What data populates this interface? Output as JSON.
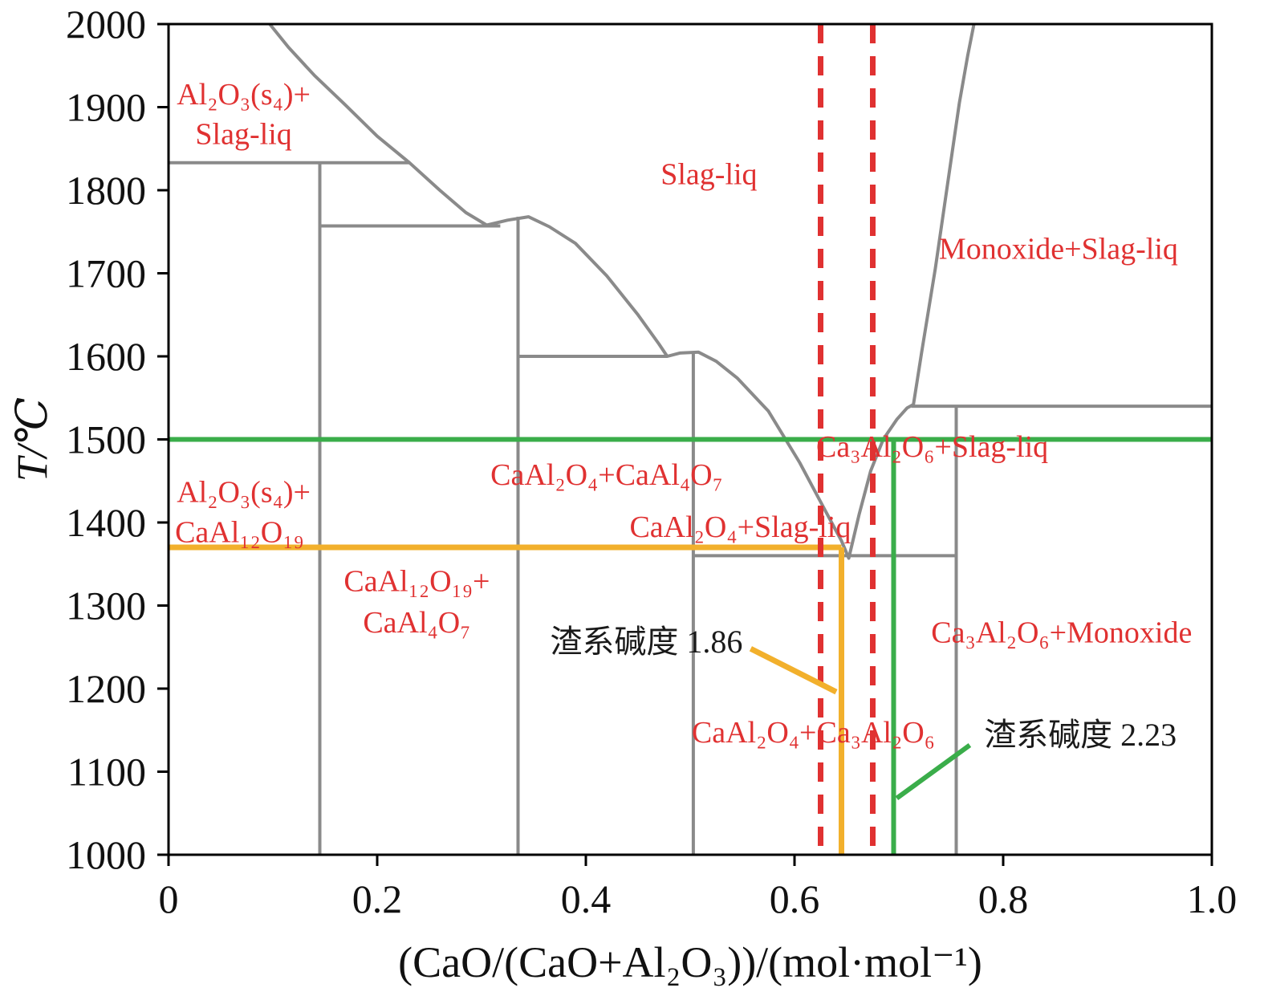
{
  "chart_data": {
    "type": "line",
    "title": "",
    "xlabel": "(CaO/(CaO+Al₂O₃))/(mol·mol⁻¹)",
    "ylabel": "T/℃",
    "xlim": [
      0,
      1.0
    ],
    "ylim": [
      1000,
      2000
    ],
    "grid": false,
    "x_ticks": [
      0,
      0.2,
      0.4,
      0.6,
      0.8,
      1.0
    ],
    "x_tick_labels": [
      "0",
      "0.2",
      "0.4",
      "0.6",
      "0.8",
      "1.0"
    ],
    "y_ticks": [
      1000,
      1100,
      1200,
      1300,
      1400,
      1500,
      1600,
      1700,
      1800,
      1900,
      2000
    ],
    "colors": {
      "boundary": "#8a8a8a",
      "frame": "#000000",
      "red": "#e03131",
      "green": "#3aad4a",
      "orange": "#f2b02c",
      "label_red": "#e03131",
      "label_black": "#1a1a1a"
    },
    "series": [
      {
        "name": "liquidus-curve",
        "color": "boundary",
        "width": 4,
        "points": [
          [
            0.097,
            2000
          ],
          [
            0.115,
            1972
          ],
          [
            0.14,
            1938
          ],
          [
            0.17,
            1902
          ],
          [
            0.2,
            1865
          ],
          [
            0.231,
            1833
          ],
          [
            0.26,
            1800
          ],
          [
            0.285,
            1773
          ],
          [
            0.305,
            1758
          ],
          [
            0.325,
            1764
          ],
          [
            0.345,
            1768
          ],
          [
            0.365,
            1756
          ],
          [
            0.39,
            1736
          ],
          [
            0.42,
            1697
          ],
          [
            0.45,
            1650
          ],
          [
            0.47,
            1615
          ],
          [
            0.478,
            1600
          ],
          [
            0.49,
            1604
          ],
          [
            0.508,
            1605
          ],
          [
            0.525,
            1594
          ],
          [
            0.545,
            1574
          ],
          [
            0.575,
            1534
          ],
          [
            0.605,
            1472
          ],
          [
            0.63,
            1413
          ],
          [
            0.645,
            1378
          ],
          [
            0.652,
            1357
          ],
          [
            0.662,
            1410
          ],
          [
            0.673,
            1462
          ],
          [
            0.685,
            1500
          ],
          [
            0.698,
            1524
          ],
          [
            0.708,
            1538
          ],
          [
            0.714,
            1542
          ],
          [
            0.722,
            1606
          ],
          [
            0.735,
            1706
          ],
          [
            0.747,
            1810
          ],
          [
            0.758,
            1905
          ],
          [
            0.766,
            1962
          ],
          [
            0.772,
            2000
          ]
        ]
      },
      {
        "name": "isotherm-1833",
        "color": "boundary",
        "width": 4,
        "points": [
          [
            0,
            1833
          ],
          [
            0.231,
            1833
          ]
        ]
      },
      {
        "name": "isotherm-1757",
        "color": "boundary",
        "width": 4,
        "points": [
          [
            0.145,
            1757
          ],
          [
            0.318,
            1757
          ]
        ]
      },
      {
        "name": "isotherm-1600",
        "color": "boundary",
        "width": 4,
        "points": [
          [
            0.335,
            1600
          ],
          [
            0.478,
            1600
          ]
        ]
      },
      {
        "name": "isotherm-1360",
        "color": "boundary",
        "width": 4,
        "points": [
          [
            0.503,
            1360
          ],
          [
            0.755,
            1360
          ]
        ]
      },
      {
        "name": "isotherm-1540",
        "color": "boundary",
        "width": 4,
        "points": [
          [
            0.712,
            1540
          ],
          [
            1.0,
            1540
          ]
        ]
      },
      {
        "name": "phase-boundary-x0145",
        "color": "boundary",
        "width": 4,
        "points": [
          [
            0.145,
            1833
          ],
          [
            0.145,
            1000
          ]
        ]
      },
      {
        "name": "phase-boundary-x0335",
        "color": "boundary",
        "width": 4,
        "points": [
          [
            0.335,
            1768
          ],
          [
            0.335,
            1000
          ]
        ]
      },
      {
        "name": "phase-boundary-x0503",
        "color": "boundary",
        "width": 4,
        "points": [
          [
            0.503,
            1605
          ],
          [
            0.503,
            1000
          ]
        ]
      },
      {
        "name": "phase-boundary-x0755",
        "color": "boundary",
        "width": 4,
        "points": [
          [
            0.755,
            1540
          ],
          [
            0.755,
            1000
          ]
        ]
      },
      {
        "name": "basicity-186-horizontal",
        "color": "orange",
        "width": 7,
        "points": [
          [
            0,
            1370
          ],
          [
            0.645,
            1370
          ]
        ]
      },
      {
        "name": "basicity-186-vertical",
        "color": "orange",
        "width": 7,
        "points": [
          [
            0.645,
            1370
          ],
          [
            0.645,
            1000
          ]
        ]
      },
      {
        "name": "basicity-223-horizontal",
        "color": "green",
        "width": 6,
        "points": [
          [
            0,
            1500
          ],
          [
            1.0,
            1500
          ]
        ]
      },
      {
        "name": "basicity-223-vertical",
        "color": "green",
        "width": 6,
        "points": [
          [
            0.695,
            1500
          ],
          [
            0.695,
            1000
          ]
        ]
      },
      {
        "name": "target-range-dashed-left",
        "color": "red",
        "width": 7,
        "dash": "24 16",
        "points": [
          [
            0.625,
            2000
          ],
          [
            0.625,
            1000
          ]
        ]
      },
      {
        "name": "target-range-dashed-right",
        "color": "red",
        "width": 7,
        "dash": "24 16",
        "points": [
          [
            0.675,
            2000
          ],
          [
            0.675,
            1000
          ]
        ]
      },
      {
        "name": "leader-line-186",
        "color": "orange",
        "width": 7,
        "points": [
          [
            0.558,
            1248
          ],
          [
            0.64,
            1196
          ]
        ]
      },
      {
        "name": "leader-line-223",
        "color": "green",
        "width": 6,
        "points": [
          [
            0.698,
            1068
          ],
          [
            0.768,
            1132
          ]
        ]
      }
    ],
    "labels": [
      {
        "name": "region-al2o3-slagliq-line1",
        "text": "Al₂O₃(s₄)+",
        "x": 0.072,
        "T": 1916,
        "color": "label_red"
      },
      {
        "name": "region-al2o3-slagliq-line2",
        "text": "Slag-liq",
        "x": 0.072,
        "T": 1868,
        "color": "label_red"
      },
      {
        "name": "region-slagliq",
        "text": "Slag-liq",
        "x": 0.518,
        "T": 1820,
        "color": "label_red"
      },
      {
        "name": "region-monoxide-slagliq",
        "text": "Monoxide+Slag-liq",
        "x": 0.853,
        "T": 1730,
        "color": "label_red"
      },
      {
        "name": "region-ca3al2o6-slagliq",
        "text": "Ca₃Al₂O₆+Slag-liq",
        "x": 0.732,
        "T": 1492,
        "color": "label_red"
      },
      {
        "name": "region-caal2o4-caal4o7",
        "text": "CaAl₂O₄+CaAl₄O₇",
        "x": 0.42,
        "T": 1458,
        "color": "label_red"
      },
      {
        "name": "region-caal2o4-slagliq",
        "text": "CaAl₂O₄+Slag-liq",
        "x": 0.548,
        "T": 1395,
        "color": "label_red"
      },
      {
        "name": "region-al2o3-caal12o19-line1",
        "text": "Al₂O₃(s₄)+",
        "x": 0.072,
        "T": 1437,
        "color": "label_red"
      },
      {
        "name": "region-al2o3-caal12o19-line2",
        "text": "CaAl₁₂O₁₉",
        "x": 0.068,
        "T": 1389,
        "color": "label_red"
      },
      {
        "name": "region-caal12o19-caal4o7-line1",
        "text": "CaAl₁₂O₁₉+",
        "x": 0.238,
        "T": 1330,
        "color": "label_red"
      },
      {
        "name": "region-caal12o19-caal4o7-line2",
        "text": "CaAl₄O₇",
        "x": 0.238,
        "T": 1280,
        "color": "label_red"
      },
      {
        "name": "annotation-basicity-186",
        "text": "渣系碱度 1.86",
        "x": 0.458,
        "T": 1256,
        "color": "label_black"
      },
      {
        "name": "region-caal2o4-ca3al2o6",
        "text": "CaAl₂O₄+Ca₃Al₂O₆",
        "x": 0.618,
        "T": 1148,
        "color": "label_red"
      },
      {
        "name": "region-ca3al2o6-monoxide",
        "text": "Ca₃Al₂O₆+Monoxide",
        "x": 0.856,
        "T": 1268,
        "color": "label_red"
      },
      {
        "name": "annotation-basicity-223",
        "text": "渣系碱度 2.23",
        "x": 0.874,
        "T": 1144,
        "color": "label_black"
      }
    ]
  }
}
